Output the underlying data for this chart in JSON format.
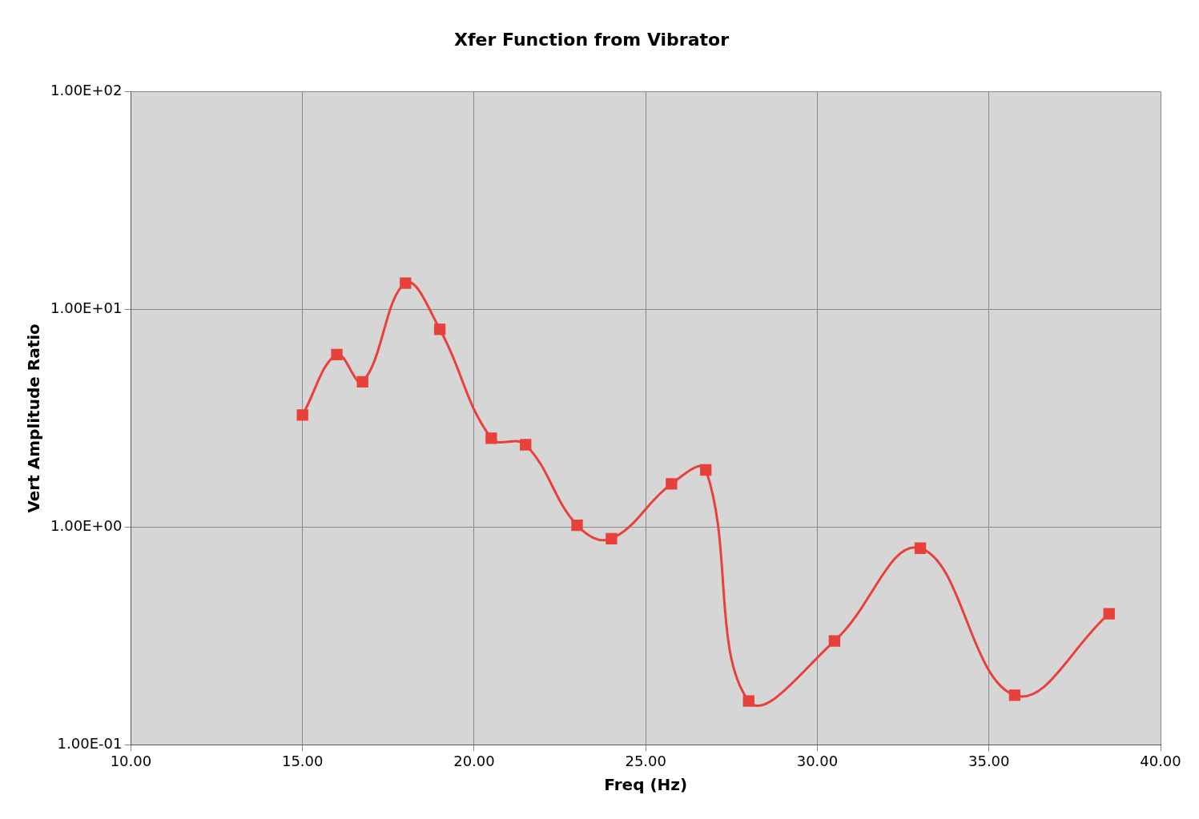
{
  "chart_data": {
    "type": "line",
    "title": "Xfer Function from Vibrator",
    "xlabel": "Freq (Hz)",
    "ylabel": "Vert Amplitude Ratio",
    "x": [
      15,
      16,
      16.75,
      18,
      19,
      20.5,
      21.5,
      23,
      24,
      25.75,
      26.75,
      28,
      30.5,
      33,
      35.75,
      38.5
    ],
    "series": [
      {
        "color": "#e8413c",
        "values": [
          3.27,
          6.2,
          4.65,
          13.2,
          8.1,
          2.56,
          2.39,
          1.02,
          0.885,
          1.58,
          1.83,
          0.159,
          0.3,
          0.8,
          0.169,
          0.4
        ]
      }
    ],
    "xlim": [
      10,
      40
    ],
    "xticks": [
      {
        "value": 10,
        "label": "10.00"
      },
      {
        "value": 15,
        "label": "15.00"
      },
      {
        "value": 20,
        "label": "20.00"
      },
      {
        "value": 25,
        "label": "25.00"
      },
      {
        "value": 30,
        "label": "30.00"
      },
      {
        "value": 35,
        "label": "35.00"
      },
      {
        "value": 40,
        "label": "40.00"
      }
    ],
    "ylim": [
      0.1,
      100
    ],
    "yticks": [
      {
        "value": 0.1,
        "label": "1.00E-01"
      },
      {
        "value": 1,
        "label": "1.00E+00"
      },
      {
        "value": 10,
        "label": "1.00E+01"
      },
      {
        "value": 100,
        "label": "1.00E+02"
      }
    ],
    "log": "y",
    "grid": true,
    "legend": false,
    "marker": "square",
    "line_style": "solid"
  }
}
